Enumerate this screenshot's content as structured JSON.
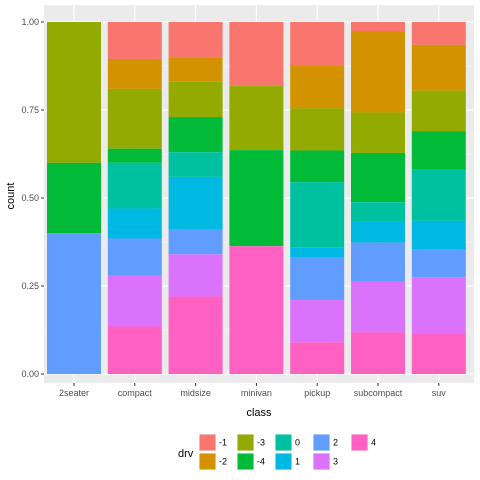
{
  "chart_data": {
    "type": "bar",
    "stacked": "fill",
    "categories": [
      "2seater",
      "compact",
      "midsize",
      "minivan",
      "pickup",
      "subcompact",
      "suv"
    ],
    "xlabel": "class",
    "ylabel": "count",
    "ylim": [
      0,
      1
    ],
    "yticks": [
      "0.00",
      "0.25",
      "0.50",
      "0.75",
      "1.00"
    ],
    "grid": true,
    "legend": {
      "title": "drv",
      "placement": "bottom",
      "keys": [
        "-1",
        "-2",
        "-3",
        "-4",
        "0",
        "1",
        "2",
        "3",
        "4"
      ]
    },
    "series": [
      {
        "name": "-1",
        "color": "#F8766D",
        "values": [
          0,
          0.105,
          0.1,
          0.182,
          0.125,
          0.027,
          0.065
        ]
      },
      {
        "name": "-2",
        "color": "#D39200",
        "values": [
          0,
          0.085,
          0.07,
          0,
          0.12,
          0.23,
          0.13
        ]
      },
      {
        "name": "-3",
        "color": "#93AA00",
        "values": [
          0.4,
          0.17,
          0.1,
          0.182,
          0.12,
          0.115,
          0.115
        ]
      },
      {
        "name": "-4",
        "color": "#00BA38",
        "values": [
          0.2,
          0.04,
          0.1,
          0.273,
          0.09,
          0.14,
          0.11
        ]
      },
      {
        "name": "0",
        "color": "#00C19F",
        "values": [
          0,
          0.13,
          0.07,
          0,
          0.185,
          0.055,
          0.145
        ]
      },
      {
        "name": "1",
        "color": "#00B9E3",
        "values": [
          0,
          0.085,
          0.15,
          0,
          0.03,
          0.06,
          0.08
        ]
      },
      {
        "name": "2",
        "color": "#619CFF",
        "values": [
          0.4,
          0.105,
          0.07,
          0,
          0.12,
          0.11,
          0.08
        ]
      },
      {
        "name": "3",
        "color": "#DB72FB",
        "values": [
          0,
          0.145,
          0.12,
          0,
          0.12,
          0.145,
          0.16
        ]
      },
      {
        "name": "4",
        "color": "#FF61C3",
        "values": [
          0,
          0.135,
          0.22,
          0.363,
          0.09,
          0.118,
          0.115
        ]
      }
    ]
  }
}
